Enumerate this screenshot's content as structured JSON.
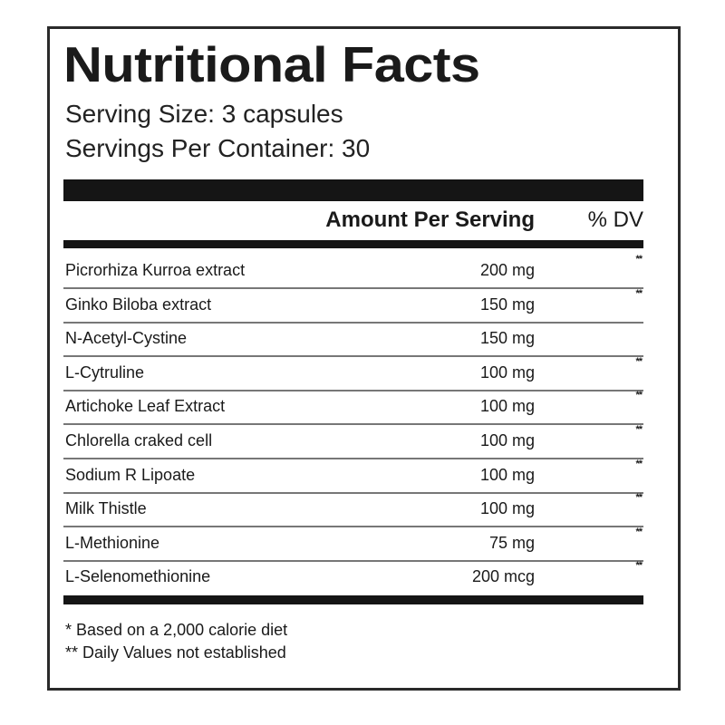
{
  "title": "Nutritional Facts",
  "serving_size": "Serving Size: 3 capsules",
  "servings_per_container": "Servings Per Container: 30",
  "header": {
    "amount": "Amount Per Serving",
    "dv": "% DV"
  },
  "rows": [
    {
      "name": "Picrorhiza Kurroa extract",
      "amount": "200 mg",
      "dv": "**"
    },
    {
      "name": "Ginko Biloba extract",
      "amount": "150 mg",
      "dv": "**"
    },
    {
      "name": "N-Acetyl-Cystine",
      "amount": "150 mg",
      "dv": ""
    },
    {
      "name": "L-Cytruline",
      "amount": "100 mg",
      "dv": "**"
    },
    {
      "name": "Artichoke Leaf Extract",
      "amount": "100 mg",
      "dv": "**"
    },
    {
      "name": "Chlorella craked cell",
      "amount": "100 mg",
      "dv": "**"
    },
    {
      "name": "Sodium R Lipoate",
      "amount": "100 mg",
      "dv": "**"
    },
    {
      "name": "Milk Thistle",
      "amount": "100 mg",
      "dv": "**"
    },
    {
      "name": "L-Methionine",
      "amount": "75 mg",
      "dv": "**"
    },
    {
      "name": "L-Selenomethionine",
      "amount": "200 mcg",
      "dv": "**"
    }
  ],
  "footnotes": [
    "* Based on a 2,000 calorie diet",
    "** Daily Values not established"
  ]
}
